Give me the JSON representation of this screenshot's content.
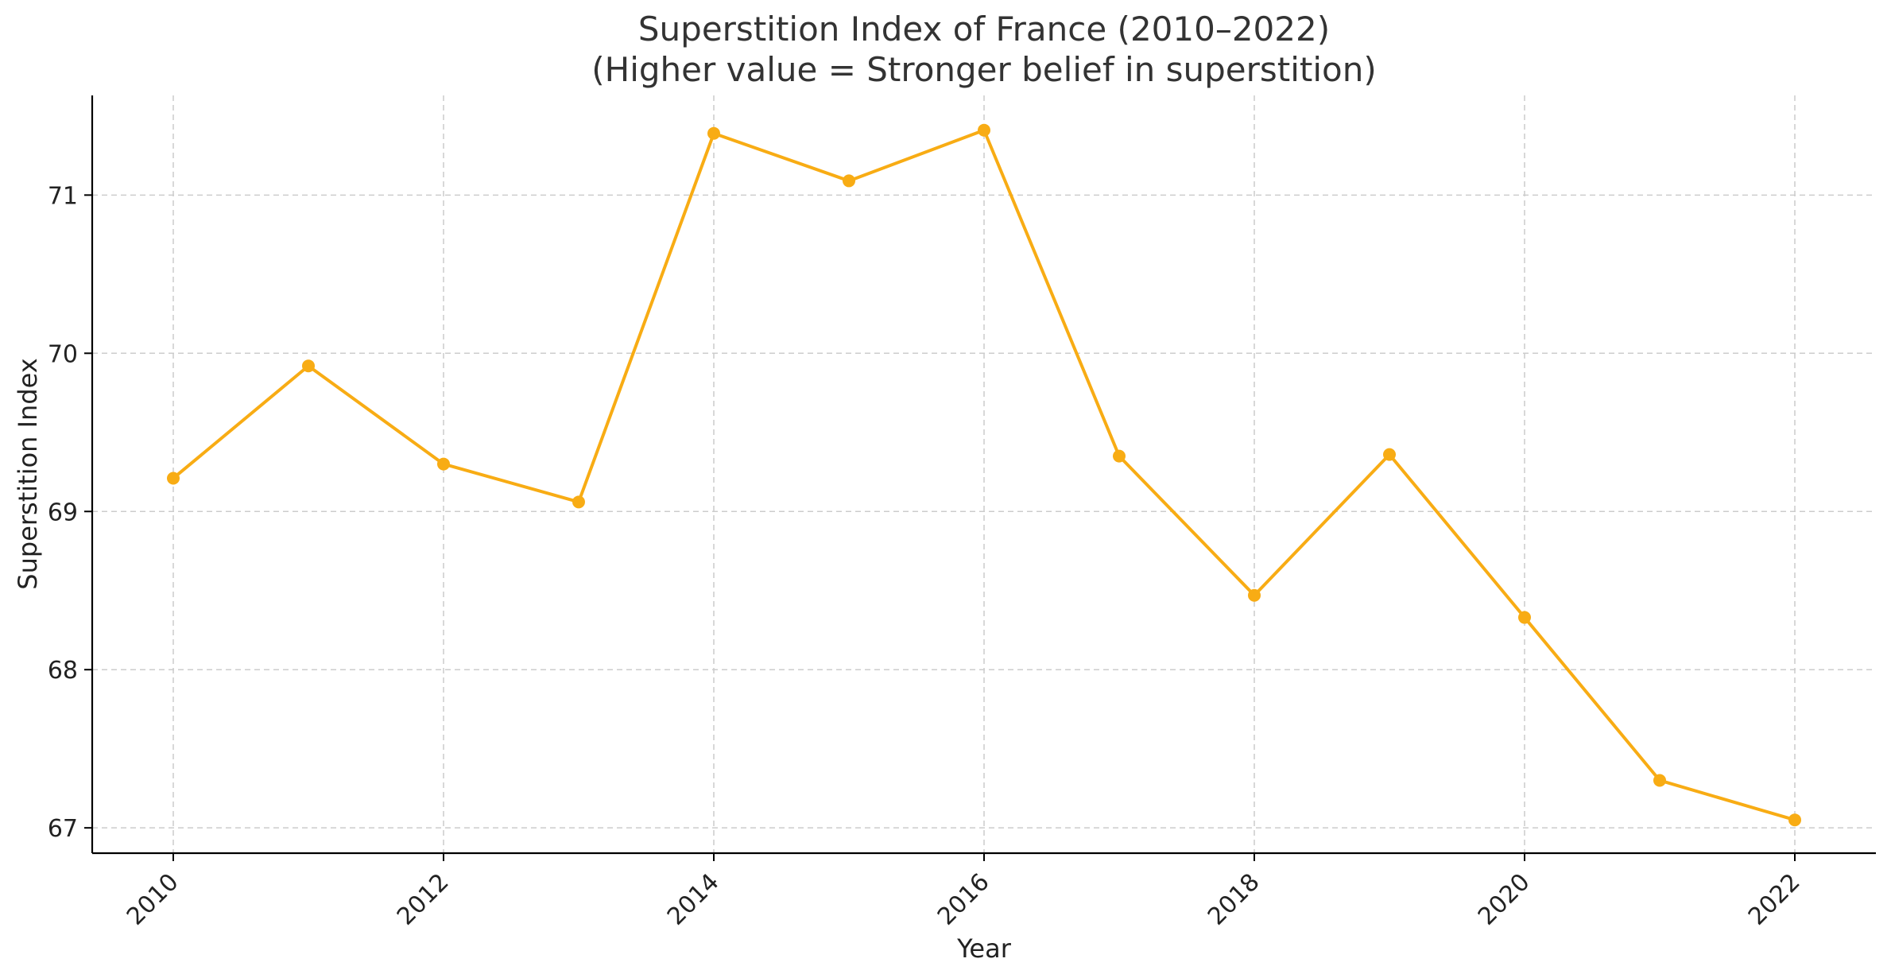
{
  "chart_data": {
    "type": "line",
    "title_line1": "Superstition Index of France (2010–2022)",
    "title_line2": "(Higher value = Stronger belief in superstition)",
    "xlabel": "Year",
    "ylabel": "Superstition Index",
    "x": [
      2010,
      2011,
      2012,
      2013,
      2014,
      2015,
      2016,
      2017,
      2018,
      2019,
      2020,
      2021,
      2022
    ],
    "series": [
      {
        "values": [
          69.21,
          69.92,
          69.3,
          69.06,
          71.39,
          71.09,
          71.41,
          69.35,
          68.47,
          69.36,
          68.33,
          67.3,
          67.05
        ],
        "color": "#F8AC14"
      }
    ],
    "xticks": [
      "2010",
      "2012",
      "2014",
      "2016",
      "2018",
      "2020",
      "2022"
    ],
    "yticks": [
      "67",
      "68",
      "69",
      "70",
      "71"
    ],
    "xlim": [
      2009.4,
      2022.6
    ],
    "ylim": [
      66.84,
      71.63
    ],
    "grid": true,
    "legend": "none"
  }
}
